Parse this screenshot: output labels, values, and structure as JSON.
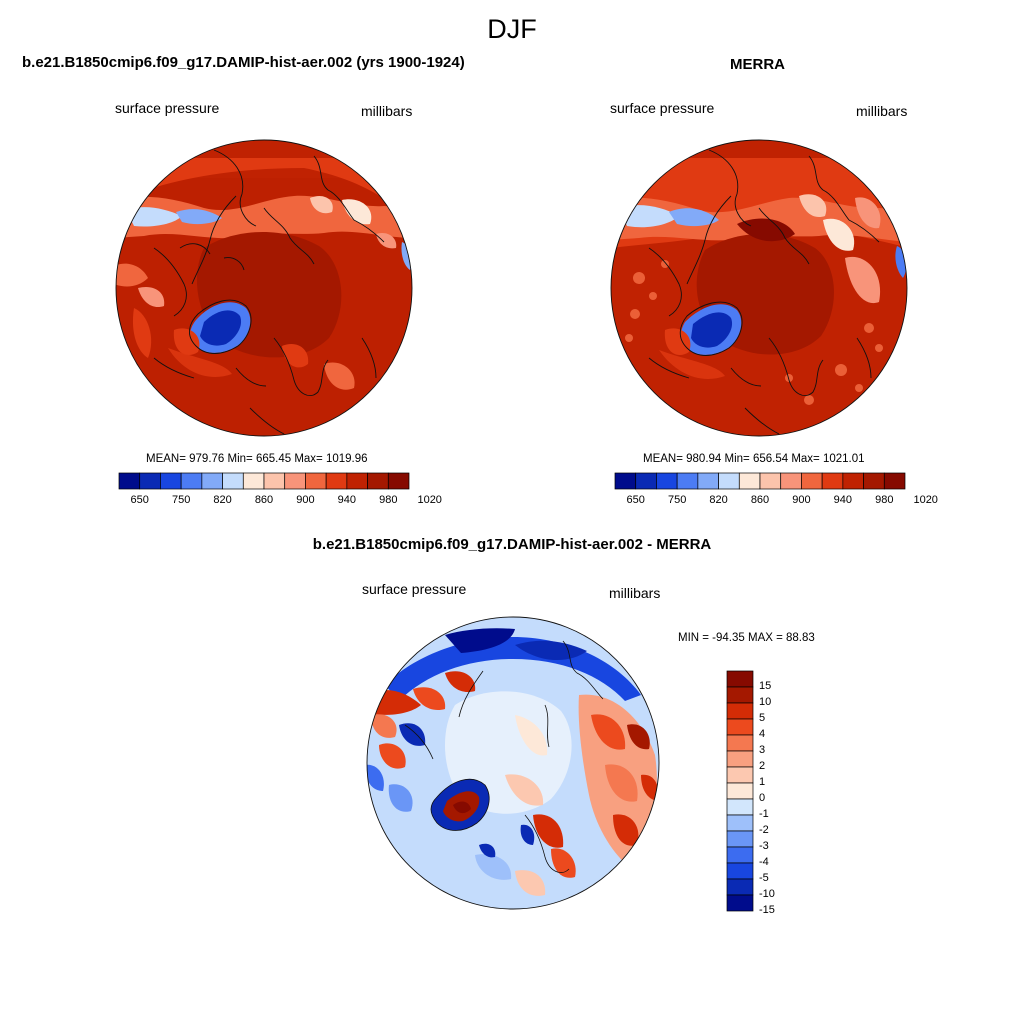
{
  "figure": {
    "title": "DJF"
  },
  "panels": [
    {
      "title": "b.e21.B1850cmip6.f09_g17.DAMIP-hist-aer.002 (yrs 1900-1924)",
      "left_label": "surface pressure",
      "right_label": "millibars",
      "stats": "MEAN= 979.76  Min= 665.45  Max= 1019.96"
    },
    {
      "title": "MERRA",
      "left_label": "surface pressure",
      "right_label": "millibars",
      "stats": "MEAN= 980.94  Min= 656.54  Max= 1021.01"
    },
    {
      "title": "b.e21.B1850cmip6.f09_g17.DAMIP-hist-aer.002 - MERRA",
      "left_label": "surface pressure",
      "right_label": "millibars",
      "stats": "MIN = -94.35 MAX =  88.83"
    }
  ],
  "colorbar_abs": {
    "colors": [
      "#000c8c",
      "#0a2ab4",
      "#1846e0",
      "#4c7cf4",
      "#82aaf8",
      "#c4dcfc",
      "#fde8d8",
      "#fcc4ac",
      "#f8947a",
      "#f0663e",
      "#e03a12",
      "#c02202",
      "#a41800",
      "#860a00"
    ],
    "tick_labels": [
      "650",
      "750",
      "820",
      "860",
      "900",
      "940",
      "980",
      "1020"
    ]
  },
  "colorbar_diff": {
    "colors": [
      "#000c8c",
      "#0a2ab4",
      "#1846e0",
      "#3c6cf0",
      "#6a96f6",
      "#9ec0fa",
      "#d2e6fc",
      "#fde8d8",
      "#fcc8b0",
      "#f8a080",
      "#f47850",
      "#ec4a1e",
      "#d42c06",
      "#a41800",
      "#860a00"
    ],
    "tick_labels": [
      "15",
      "10",
      "5",
      "4",
      "3",
      "2",
      "1",
      "0",
      "-1",
      "-2",
      "-3",
      "-4",
      "-5",
      "-10",
      "-15"
    ]
  },
  "colors": {
    "dark_red": "#a41800",
    "red": "#d83a10",
    "orange": "#f0663e",
    "light_blue": "#c4dcfc",
    "blue": "#1846e0",
    "navy": "#000c8c"
  }
}
